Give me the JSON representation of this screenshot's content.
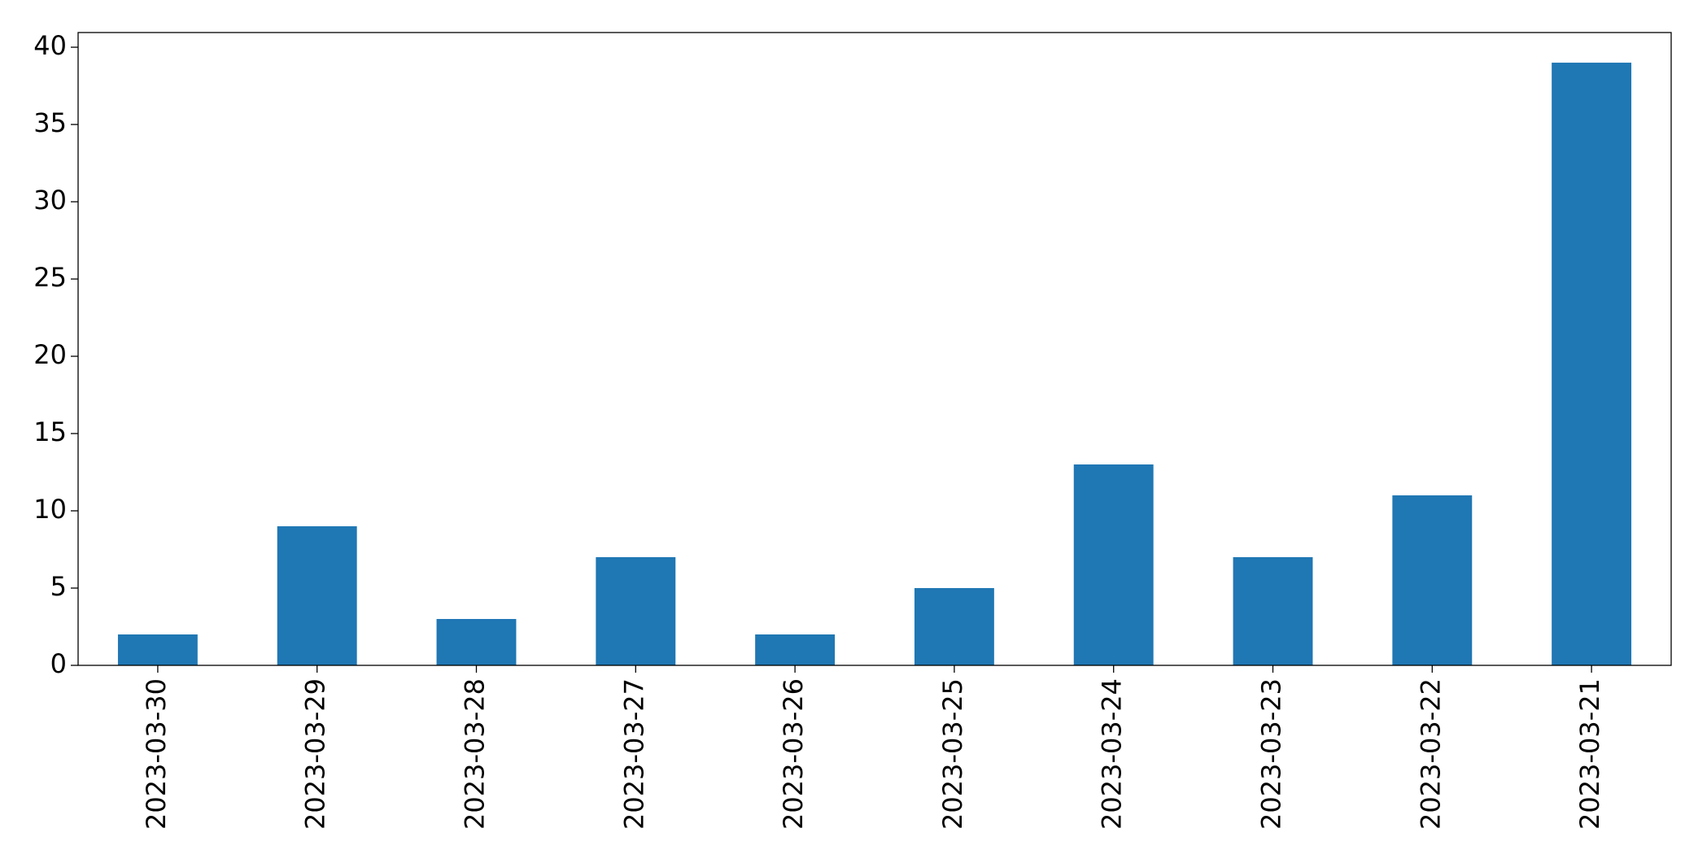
{
  "chart_data": {
    "type": "bar",
    "categories": [
      "2023-03-30",
      "2023-03-29",
      "2023-03-28",
      "2023-03-27",
      "2023-03-26",
      "2023-03-25",
      "2023-03-24",
      "2023-03-23",
      "2023-03-22",
      "2023-03-21"
    ],
    "values": [
      2,
      9,
      3,
      7,
      2,
      5,
      13,
      7,
      11,
      39
    ],
    "color": "#1f77b4",
    "ylim": [
      0,
      40.95
    ],
    "yticks": [
      0,
      5,
      10,
      15,
      20,
      25,
      30,
      35,
      40
    ],
    "grid": false
  }
}
